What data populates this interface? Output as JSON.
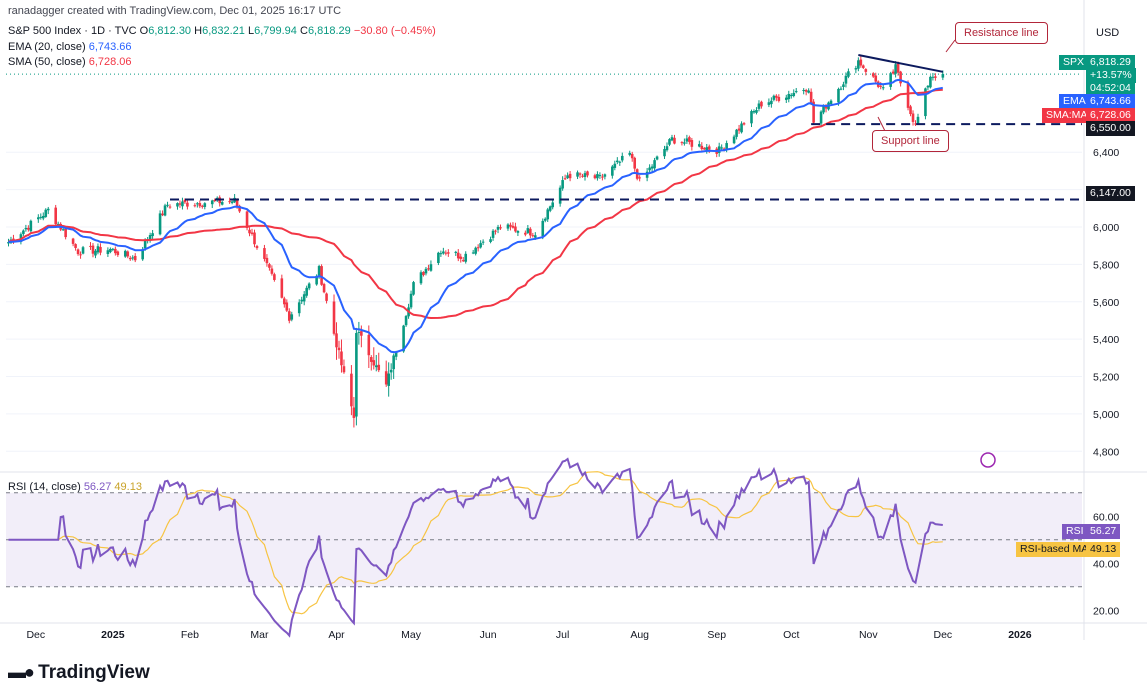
{
  "header": {
    "credit": "ranadagger created with TradingView.com, Dec 01, 2025 16:17 UTC",
    "symbol_line": "S&P 500 Index · 1D · TVC",
    "o_label": "O",
    "o": "6,812.30",
    "h_label": "H",
    "h": "6,832.21",
    "l_label": "L",
    "l": "6,799.94",
    "c_label": "C",
    "c": "6,818.29",
    "change": "−30.80 (−0.45%)",
    "ema_label": "EMA (20, close)",
    "ema_value": "6,743.66",
    "sma_label": "SMA (50, close)",
    "sma_value": "6,728.06"
  },
  "currency": "USD",
  "badges": {
    "spx_label": "SPX",
    "spx_price": "6,818.29",
    "spx_change": "+13.57%",
    "spx_timer": "04:52:04",
    "ema_label": "EMA",
    "ema_value": "6,743.66",
    "sma_label": "SMA:MA",
    "sma_value": "6,728.06",
    "support_value": "6,550.00",
    "level_value": "6,147.00",
    "rsi_label": "RSI",
    "rsi_value": "56.27",
    "rsi_ma_label": "RSI-based MA",
    "rsi_ma_value": "49.13"
  },
  "annotations": {
    "resistance": "Resistance line",
    "support": "Support line"
  },
  "rsi_header": {
    "label": "RSI (14, close)",
    "value": "56.27",
    "ma": "49.13"
  },
  "logo": "TradingView",
  "colors": {
    "up": "#089981",
    "down": "#f23645",
    "ema": "#2962ff",
    "sma": "#f23645",
    "rsi": "#7e57c2",
    "rsi_ma": "#f7c443",
    "annotation": "#b2263a"
  },
  "chart_data": [
    {
      "type": "candlestick",
      "title": "S&P 500 Index · 1D · TVC",
      "ylim": [
        4700,
        7150
      ],
      "price_ticks": [
        4800,
        5000,
        5200,
        5400,
        5600,
        5800,
        6000,
        6200,
        6400
      ],
      "x_ticks": [
        "Dec",
        "2025",
        "Feb",
        "Mar",
        "Apr",
        "May",
        "Jun",
        "Jul",
        "Aug",
        "Sep",
        "Oct",
        "Nov",
        "Dec",
        "2026"
      ],
      "close_anchors": [
        [
          "2024-11-20",
          5920
        ],
        [
          "2024-12-06",
          6090
        ],
        [
          "2024-12-18",
          5870
        ],
        [
          "2024-12-31",
          5880
        ],
        [
          "2025-01-10",
          5830
        ],
        [
          "2025-01-23",
          6120
        ],
        [
          "2025-02-19",
          6140
        ],
        [
          "2025-03-04",
          5790
        ],
        [
          "2025-03-13",
          5520
        ],
        [
          "2025-03-25",
          5770
        ],
        [
          "2025-04-08",
          4980
        ],
        [
          "2025-04-09",
          5450
        ],
        [
          "2025-04-21",
          5150
        ],
        [
          "2025-05-02",
          5690
        ],
        [
          "2025-05-13",
          5880
        ],
        [
          "2025-05-22",
          5840
        ],
        [
          "2025-06-06",
          6000
        ],
        [
          "2025-06-20",
          5970
        ],
        [
          "2025-07-03",
          6280
        ],
        [
          "2025-07-16",
          6260
        ],
        [
          "2025-07-28",
          6390
        ],
        [
          "2025-08-01",
          6240
        ],
        [
          "2025-08-14",
          6470
        ],
        [
          "2025-09-02",
          6410
        ],
        [
          "2025-09-19",
          6660
        ],
        [
          "2025-10-08",
          6750
        ],
        [
          "2025-10-10",
          6560
        ],
        [
          "2025-10-28",
          6890
        ],
        [
          "2025-11-07",
          6730
        ],
        [
          "2025-11-12",
          6850
        ],
        [
          "2025-11-20",
          6540
        ],
        [
          "2025-11-26",
          6810
        ],
        [
          "2025-12-01",
          6818
        ]
      ],
      "ema20": {
        "name": "EMA (20, close)",
        "last": 6743.66
      },
      "sma50": {
        "name": "SMA (50, close)",
        "last": 6728.06
      },
      "support_line": 6550,
      "horizontal_level": 6147,
      "resistance_line": {
        "from": [
          "2025-10-28",
          6920
        ],
        "to": [
          "2025-12-01",
          6830
        ]
      }
    },
    {
      "type": "line",
      "title": "RSI (14, close)",
      "ylim": [
        15,
        78
      ],
      "ticks": [
        20,
        40,
        60
      ],
      "bands": [
        30,
        50,
        70
      ],
      "series": [
        {
          "name": "RSI",
          "last": 56.27
        },
        {
          "name": "RSI-based MA",
          "last": 49.13
        }
      ]
    }
  ]
}
